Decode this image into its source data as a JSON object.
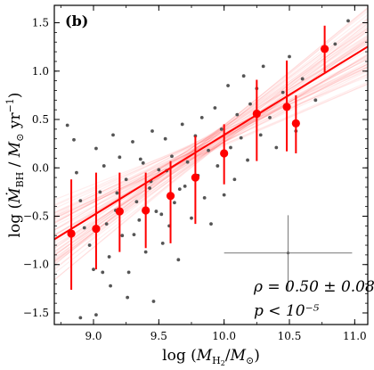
{
  "chart_data": {
    "type": "scatter",
    "panel_label": "(b)",
    "xlabel": "log (M_H2/M_⊙)",
    "ylabel": "log (Ṁ_BH / M_⊙ yr⁻¹)",
    "xlim": [
      8.7,
      11.1
    ],
    "ylim": [
      -1.62,
      1.68
    ],
    "x_ticks": [
      "9.0",
      "9.5",
      "10.0",
      "10.5",
      "11.0"
    ],
    "y_ticks": [
      "−1.5",
      "−1.0",
      "−0.5",
      "0.0",
      "0.5",
      "1.0",
      "1.5"
    ],
    "grid": false,
    "fit_line": {
      "slope": 0.83,
      "intercept": -7.96,
      "color": "#ff0000"
    },
    "binned_means": [
      {
        "x": 8.83,
        "y": -0.68,
        "yerr_low": -1.26,
        "yerr_high": -0.12
      },
      {
        "x": 9.02,
        "y": -0.63,
        "yerr_low": -1.05,
        "yerr_high": -0.05
      },
      {
        "x": 9.2,
        "y": -0.45,
        "yerr_low": -0.87,
        "yerr_high": -0.05
      },
      {
        "x": 9.4,
        "y": -0.44,
        "yerr_low": -0.83,
        "yerr_high": -0.05
      },
      {
        "x": 9.59,
        "y": -0.29,
        "yerr_low": -0.78,
        "yerr_high": 0.07
      },
      {
        "x": 9.78,
        "y": -0.1,
        "yerr_low": -0.58,
        "yerr_high": 0.33
      },
      {
        "x": 10.0,
        "y": 0.15,
        "yerr_low": -0.17,
        "yerr_high": 0.45
      },
      {
        "x": 10.25,
        "y": 0.56,
        "yerr_low": 0.07,
        "yerr_high": 0.91
      },
      {
        "x": 10.48,
        "y": 0.63,
        "yerr_low": 0.17,
        "yerr_high": 1.11
      },
      {
        "x": 10.55,
        "y": 0.46,
        "yerr_low": 0.15,
        "yerr_high": 0.75
      },
      {
        "x": 10.77,
        "y": 1.23,
        "yerr_low": 0.99,
        "yerr_high": 1.47
      }
    ],
    "typical_error": {
      "x": 10.49,
      "y": -0.88,
      "xerr": 0.49,
      "yerr": 0.39
    },
    "stat_rho": "ρ = 0.50 ± 0.08",
    "stat_p": "p < 10⁻⁵",
    "marker_color": "#ff0000",
    "scatter_color": "#555555",
    "errorbar_color": "#777777",
    "scatter_points": [
      [
        8.8,
        0.44
      ],
      [
        8.85,
        0.29
      ],
      [
        8.87,
        -0.05
      ],
      [
        8.9,
        -0.34
      ],
      [
        8.93,
        -0.62
      ],
      [
        8.97,
        -0.8
      ],
      [
        9.0,
        -1.05
      ],
      [
        9.02,
        0.2
      ],
      [
        9.05,
        -0.25
      ],
      [
        9.08,
        0.02
      ],
      [
        9.1,
        -0.58
      ],
      [
        9.12,
        -0.92
      ],
      [
        9.15,
        0.34
      ],
      [
        9.17,
        -0.44
      ],
      [
        9.2,
        0.11
      ],
      [
        9.22,
        -0.7
      ],
      [
        9.25,
        -0.12
      ],
      [
        9.27,
        -1.08
      ],
      [
        9.3,
        0.27
      ],
      [
        9.33,
        -0.35
      ],
      [
        9.35,
        -0.54
      ],
      [
        9.38,
        0.05
      ],
      [
        9.4,
        -0.87
      ],
      [
        9.43,
        -0.21
      ],
      [
        9.45,
        0.38
      ],
      [
        9.48,
        -0.45
      ],
      [
        9.5,
        -0.02
      ],
      [
        9.53,
        -0.78
      ],
      [
        9.55,
        0.3
      ],
      [
        9.58,
        -0.6
      ],
      [
        9.6,
        0.12
      ],
      [
        9.62,
        -0.36
      ],
      [
        9.65,
        -0.95
      ],
      [
        9.68,
        0.45
      ],
      [
        9.7,
        -0.19
      ],
      [
        9.72,
        0.06
      ],
      [
        9.75,
        -0.52
      ],
      [
        9.78,
        0.33
      ],
      [
        9.8,
        -0.08
      ],
      [
        9.83,
        0.52
      ],
      [
        9.85,
        -0.31
      ],
      [
        9.88,
        0.18
      ],
      [
        9.9,
        -0.58
      ],
      [
        9.93,
        0.62
      ],
      [
        9.95,
        0.02
      ],
      [
        9.98,
        0.4
      ],
      [
        10.0,
        -0.28
      ],
      [
        10.03,
        0.85
      ],
      [
        10.05,
        0.21
      ],
      [
        10.08,
        -0.12
      ],
      [
        10.1,
        0.55
      ],
      [
        10.13,
        0.31
      ],
      [
        10.15,
        0.95
      ],
      [
        10.18,
        0.08
      ],
      [
        10.2,
        0.66
      ],
      [
        10.25,
        0.82
      ],
      [
        10.28,
        0.34
      ],
      [
        10.3,
        1.05
      ],
      [
        10.35,
        0.52
      ],
      [
        10.4,
        0.21
      ],
      [
        10.45,
        0.78
      ],
      [
        10.5,
        1.15
      ],
      [
        10.55,
        0.38
      ],
      [
        10.6,
        0.92
      ],
      [
        10.7,
        0.7
      ],
      [
        10.85,
        1.28
      ],
      [
        10.95,
        1.52
      ],
      [
        9.26,
        -1.34
      ],
      [
        9.46,
        -1.38
      ],
      [
        9.07,
        -1.08
      ],
      [
        9.13,
        -1.22
      ],
      [
        8.9,
        -1.55
      ],
      [
        9.02,
        -1.52
      ],
      [
        9.31,
        -0.69
      ],
      [
        9.52,
        -0.48
      ],
      [
        9.66,
        -0.22
      ],
      [
        9.44,
        -0.14
      ],
      [
        9.56,
        -0.03
      ],
      [
        9.18,
        -0.26
      ],
      [
        9.36,
        0.09
      ]
    ]
  }
}
